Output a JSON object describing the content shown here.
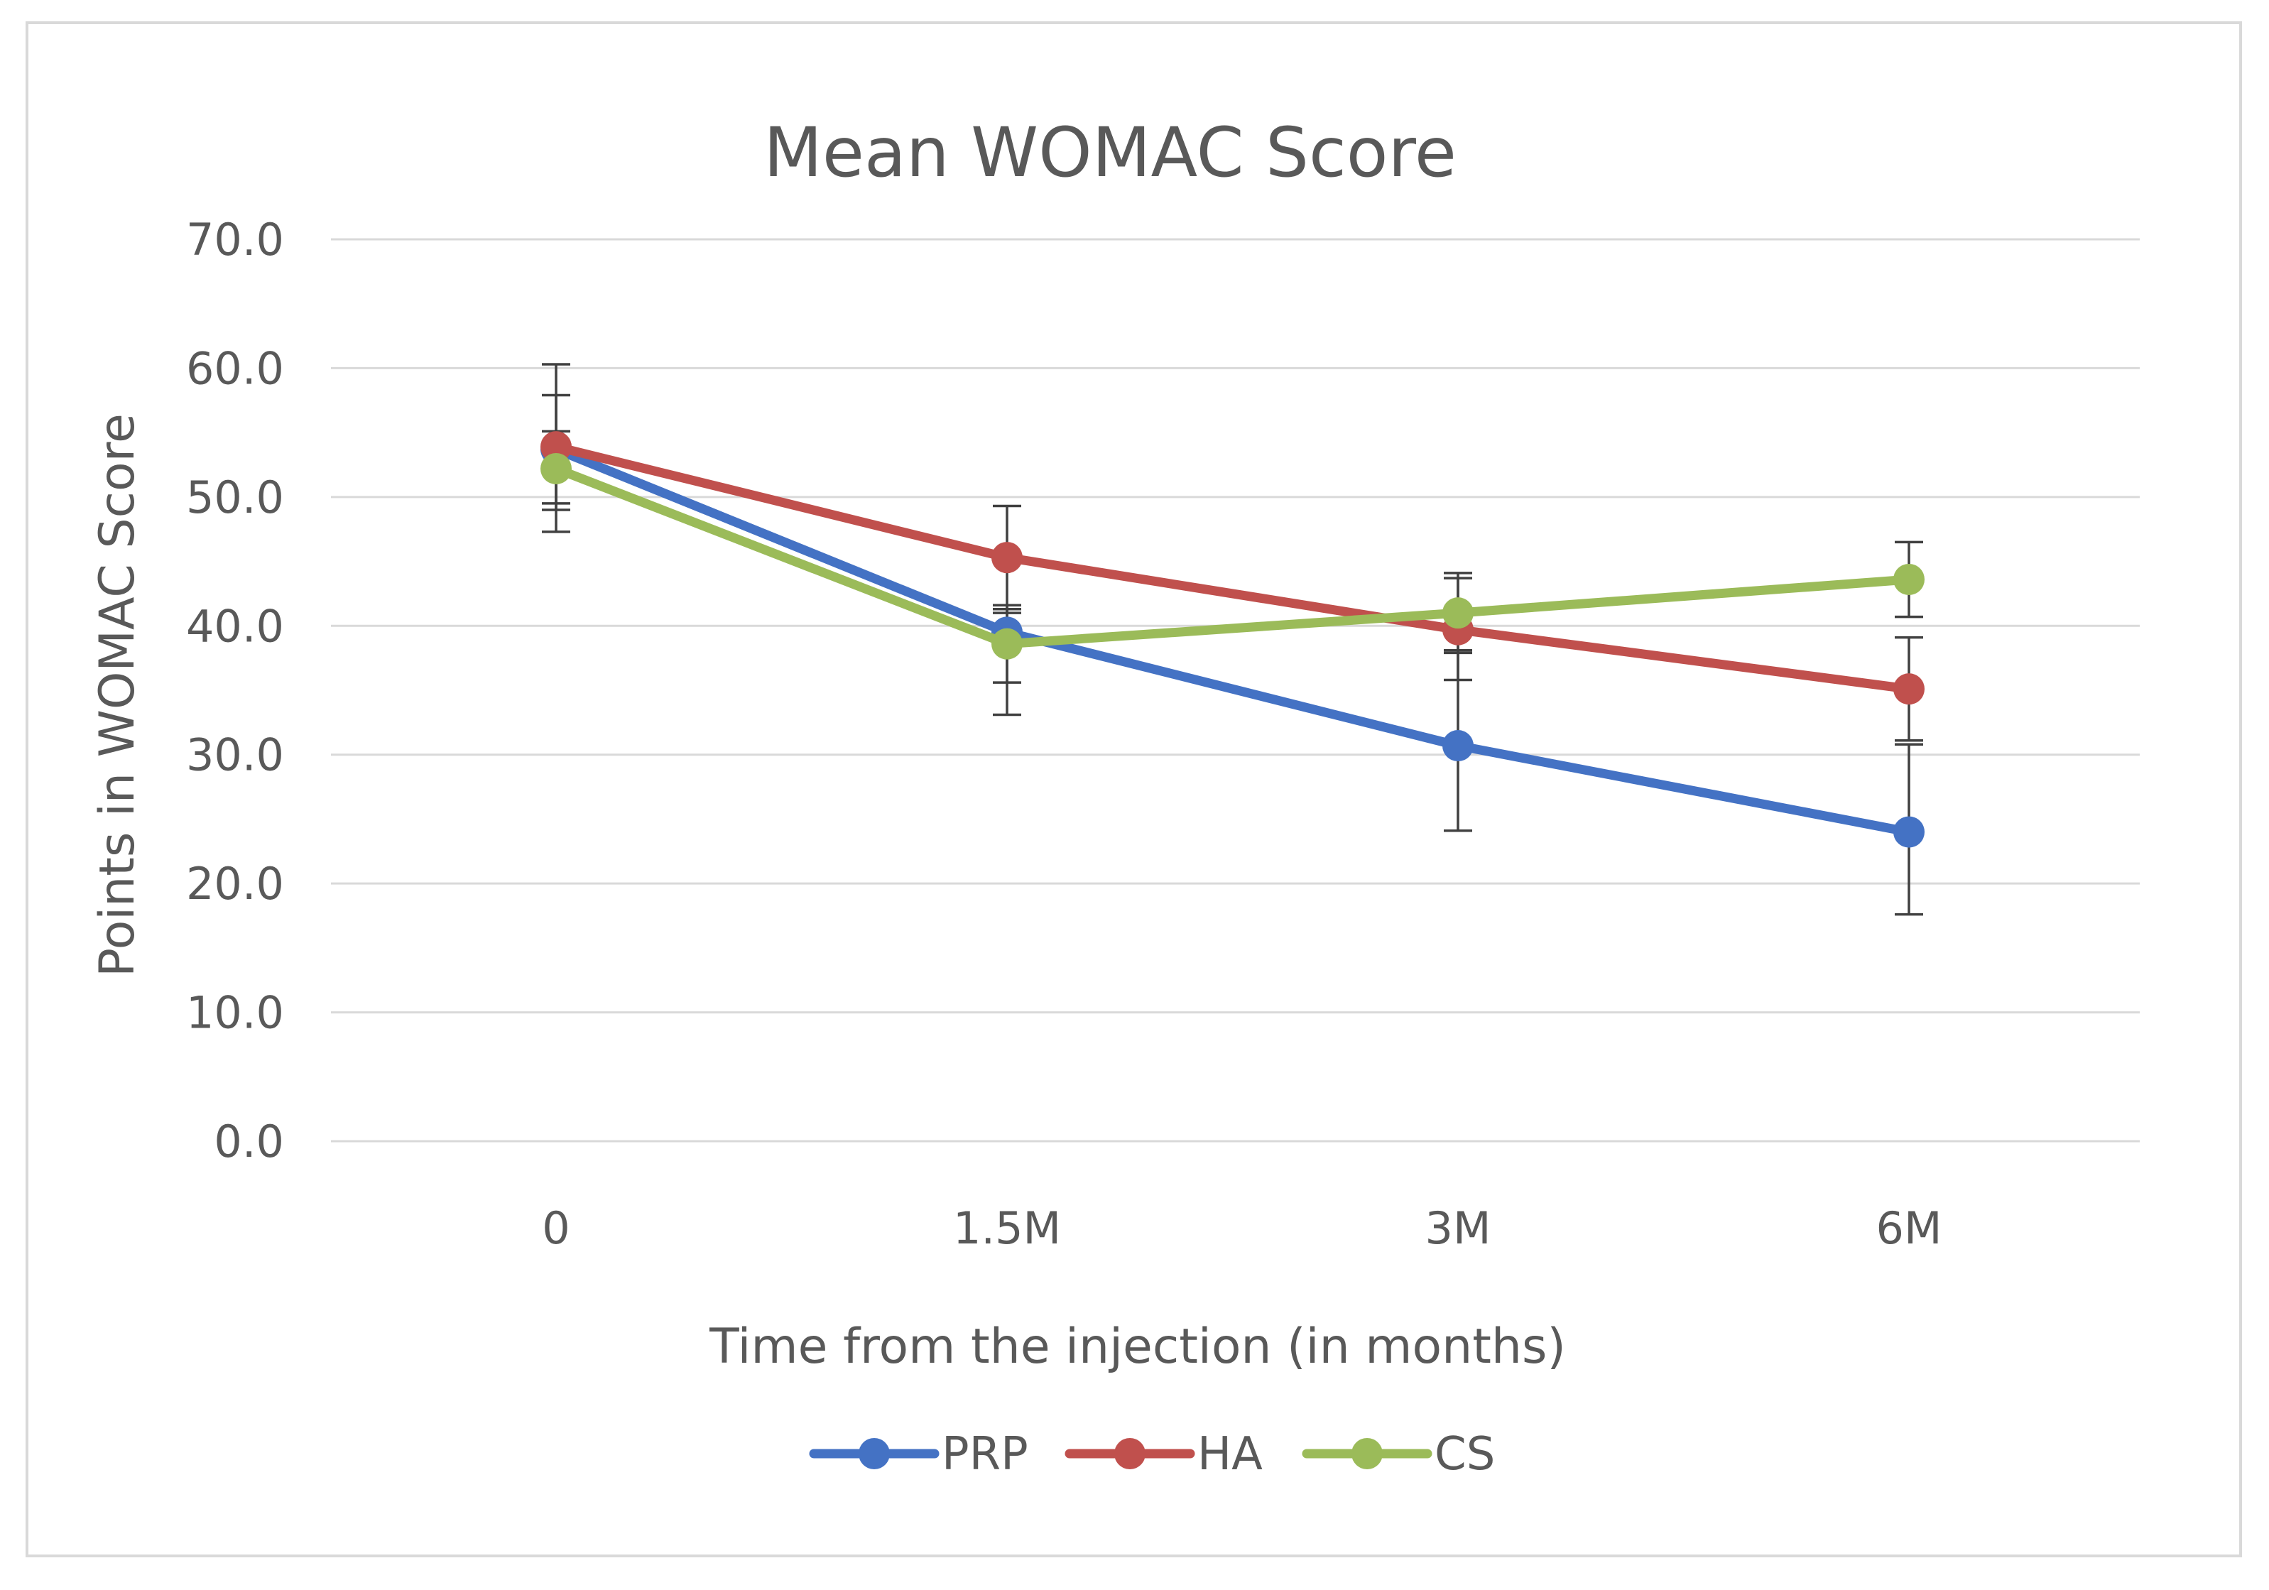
{
  "chart_data": {
    "type": "line",
    "title": "Mean WOMAC Score",
    "xlabel": "Time from the injection (in months)",
    "ylabel": "Points in WOMAC Score",
    "categories": [
      "0",
      "1.5M",
      "3M",
      "6M"
    ],
    "ylim": [
      0,
      70
    ],
    "yticks": [
      0,
      10,
      20,
      30,
      40,
      50,
      60,
      70
    ],
    "ytick_labels": [
      "0.0",
      "10.0",
      "20.0",
      "30.0",
      "40.0",
      "50.0",
      "60.0",
      "70.0"
    ],
    "grid": true,
    "legend_position": "bottom",
    "series": [
      {
        "name": "PRP",
        "color": "#4472c4",
        "values": [
          53.7,
          39.5,
          30.7,
          24.0
        ],
        "error_low": [
          47.3,
          33.1,
          24.1,
          17.6
        ],
        "error_high": [
          60.3,
          41.3,
          37.9,
          30.8
        ]
      },
      {
        "name": "HA",
        "color": "#c0504d",
        "values": [
          53.9,
          45.3,
          39.7,
          35.1
        ],
        "error_low": [
          49.5,
          41.0,
          35.8,
          31.1
        ],
        "error_high": [
          57.9,
          49.3,
          43.7,
          39.1
        ]
      },
      {
        "name": "CS",
        "color": "#9bbb59",
        "values": [
          52.2,
          38.6,
          41.0,
          43.6
        ],
        "error_low": [
          49.0,
          35.6,
          38.1,
          40.7
        ],
        "error_high": [
          55.1,
          41.6,
          44.1,
          46.5
        ]
      }
    ]
  }
}
